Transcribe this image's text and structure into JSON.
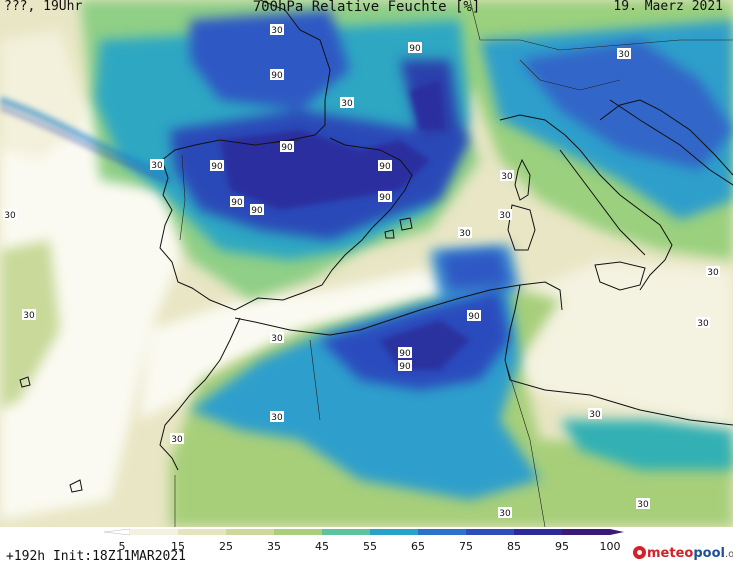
{
  "header": {
    "left": "???, 19Uhr",
    "title": "700hPa Relative Feuchte [%]",
    "date": "19. Maerz 2021"
  },
  "footer": {
    "init": "+192h  Init:18Z11MAR2021"
  },
  "logo": {
    "part1": "meteo",
    "part2": "pool",
    "part3": ".org"
  },
  "scale": {
    "ticks": [
      "5",
      "15",
      "25",
      "35",
      "45",
      "55",
      "65",
      "75",
      "85",
      "95",
      "100"
    ],
    "colors": [
      "#ffffff",
      "#f4f1df",
      "#e6e4bd",
      "#cdd89a",
      "#a9cf7a",
      "#5ec39a",
      "#27a3c8",
      "#2b72cc",
      "#2f4cbd",
      "#2a2a98",
      "#3a1a78"
    ]
  },
  "map": {
    "contour_labels": [
      "90",
      "90",
      "90",
      "90",
      "90",
      "90",
      "90",
      "90",
      "90",
      "90",
      "90",
      "30",
      "30",
      "30",
      "30",
      "30",
      "30",
      "30",
      "30",
      "30",
      "30",
      "30",
      "30",
      "30",
      "30",
      "30",
      "30",
      "30"
    ]
  }
}
